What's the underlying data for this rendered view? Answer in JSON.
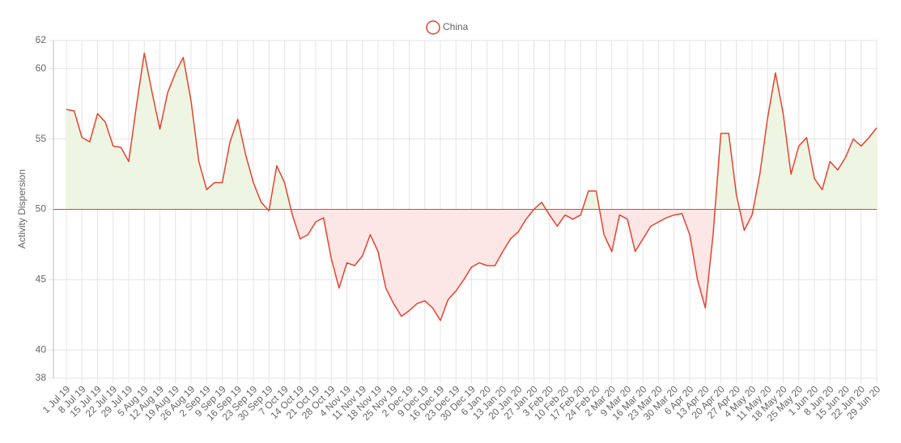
{
  "chart_data": {
    "type": "line",
    "y_label": "Activity Dispersion",
    "categories": [
      "1 Jul 19",
      null,
      "8 Jul 19",
      null,
      "15 Jul 19",
      null,
      "22 Jul 19",
      null,
      "29 Jul 19",
      null,
      "5 Aug 19",
      null,
      "12 Aug 19",
      null,
      "19 Aug 19",
      null,
      "26 Aug 19",
      null,
      "2 Sep 19",
      null,
      "9 Sep 19",
      null,
      "16 Sep 19",
      null,
      "23 Sep 19",
      null,
      "30 Sep 19",
      null,
      "7 Oct 19",
      null,
      "14 Oct 19",
      null,
      "21 Oct 19",
      null,
      "28 Oct 19",
      null,
      "4 Nov 19",
      null,
      "11 Nov 19",
      null,
      "18 Nov 19",
      null,
      "25 Nov 19",
      null,
      "2 Dec 19",
      null,
      "9 Dec 19",
      null,
      "16 Dec 19",
      null,
      "23 Dec 19",
      null,
      "30 Dec 19",
      null,
      "6 Jan 20",
      null,
      "13 Jan 20",
      null,
      "20 Jan 20",
      null,
      "27 Jan 20",
      null,
      "3 Feb 20",
      null,
      "10 Feb 20",
      null,
      "17 Feb 20",
      null,
      "24 Feb 20",
      null,
      "2 Mar 20",
      null,
      "9 Mar 20",
      null,
      "16 Mar 20",
      null,
      "23 Mar 20",
      null,
      "30 Mar 20",
      null,
      "6 Apr 20",
      null,
      "13 Apr 20",
      null,
      "20 Apr 20",
      null,
      "27 Apr 20",
      null,
      "4 May 20",
      null,
      "11 May 20",
      null,
      "18 May 20",
      null,
      "25 May 20",
      null,
      "1 Jun 20",
      null,
      "8 Jun 20",
      null,
      "15 Jun 20",
      null,
      "22 Jun 20",
      null,
      "29 Jun 20"
    ],
    "series": [
      {
        "name": "China",
        "color": "#e5432e",
        "values": [
          57.1,
          57.0,
          55.1,
          54.8,
          56.8,
          56.2,
          54.5,
          54.4,
          53.4,
          57.4,
          61.1,
          58.3,
          55.7,
          58.3,
          59.7,
          60.8,
          57.7,
          53.4,
          51.4,
          51.9,
          51.9,
          54.8,
          56.4,
          53.9,
          51.9,
          50.5,
          49.9,
          53.1,
          51.9,
          49.6,
          47.9,
          48.2,
          49.1,
          49.4,
          46.5,
          44.4,
          46.2,
          46.0,
          46.7,
          48.2,
          47.0,
          44.4,
          43.3,
          42.4,
          42.8,
          43.3,
          43.5,
          43.0,
          42.1,
          43.6,
          44.2,
          45.0,
          45.9,
          46.2,
          46.0,
          46.0,
          47.0,
          47.9,
          48.4,
          49.3,
          50.0,
          50.5,
          49.6,
          48.8,
          49.6,
          49.3,
          49.6,
          51.3,
          51.3,
          48.2,
          47.0,
          49.6,
          49.3,
          47.0,
          47.9,
          48.8,
          49.1,
          49.4,
          49.6,
          49.7,
          48.2,
          45.0,
          43.0,
          48.2,
          55.4,
          55.4,
          51.0,
          48.5,
          49.6,
          52.5,
          56.5,
          59.7,
          56.8,
          52.5,
          54.5,
          55.1,
          52.2,
          51.4,
          53.4,
          52.8,
          53.7,
          55.0,
          54.5,
          55.1,
          55.8
        ]
      }
    ],
    "threshold": 50,
    "fill_above": "#eef5e3",
    "fill_below": "#fde6e6",
    "ylim": [
      38,
      62
    ],
    "yticks": [
      38,
      40,
      45,
      50,
      55,
      60,
      62
    ],
    "grid": true
  }
}
